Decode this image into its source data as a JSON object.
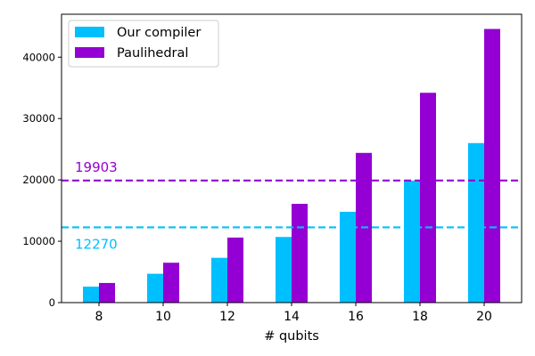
{
  "chart_data": {
    "type": "bar",
    "xlabel": "# qubits",
    "ylabel": "",
    "categories": [
      "8",
      "10",
      "12",
      "14",
      "16",
      "18",
      "20"
    ],
    "series": [
      {
        "name": "Our compiler",
        "color": "#00bfff",
        "values": [
          2600,
          4700,
          7300,
          10700,
          14800,
          19900,
          26000
        ]
      },
      {
        "name": "Paulihedral",
        "color": "#9400d3",
        "values": [
          3200,
          6500,
          10600,
          16100,
          24400,
          34200,
          44600
        ]
      }
    ],
    "ylim": [
      0,
      47000
    ],
    "yticks": [
      0,
      10000,
      20000,
      30000,
      40000
    ],
    "reference_lines": [
      {
        "value": 19903,
        "label": "19903",
        "color": "#9400d3",
        "style": "dashed"
      },
      {
        "value": 12270,
        "label": "12270",
        "color": "#00bfff",
        "style": "dashed"
      }
    ],
    "legend_position": "top-left",
    "grid": false
  }
}
